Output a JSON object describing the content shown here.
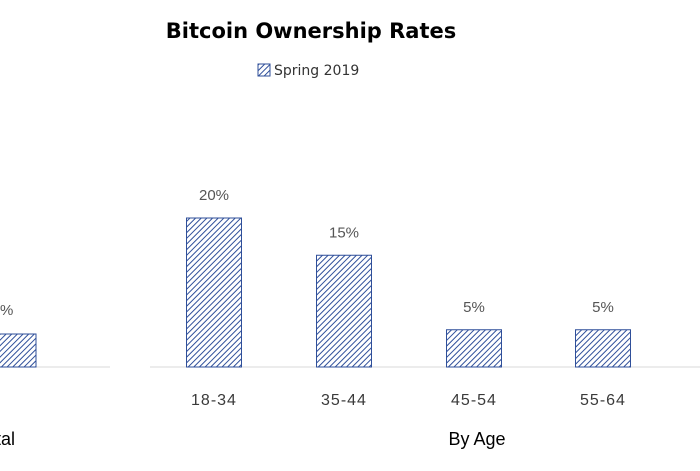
{
  "chart_data": {
    "type": "bar",
    "title": "Bitcoin Ownership Rates",
    "legend": {
      "position": "top",
      "entries": [
        "Spring 2019"
      ]
    },
    "series": [
      {
        "name": "Spring 2019",
        "color": "#2f4f9a",
        "pattern": "diagonal-hatch"
      }
    ],
    "groups": [
      {
        "label": "tal",
        "categories": [
          ""
        ],
        "values": [
          null
        ],
        "value_labels": [
          "%"
        ]
      },
      {
        "label": "By Age",
        "categories": [
          "18-34",
          "35-44",
          "45-54",
          "55-64"
        ],
        "values": [
          20,
          15,
          5,
          5
        ],
        "value_labels": [
          "20%",
          "15%",
          "5%",
          "5%"
        ]
      }
    ],
    "ylim": [
      0,
      25
    ],
    "grid": false
  }
}
